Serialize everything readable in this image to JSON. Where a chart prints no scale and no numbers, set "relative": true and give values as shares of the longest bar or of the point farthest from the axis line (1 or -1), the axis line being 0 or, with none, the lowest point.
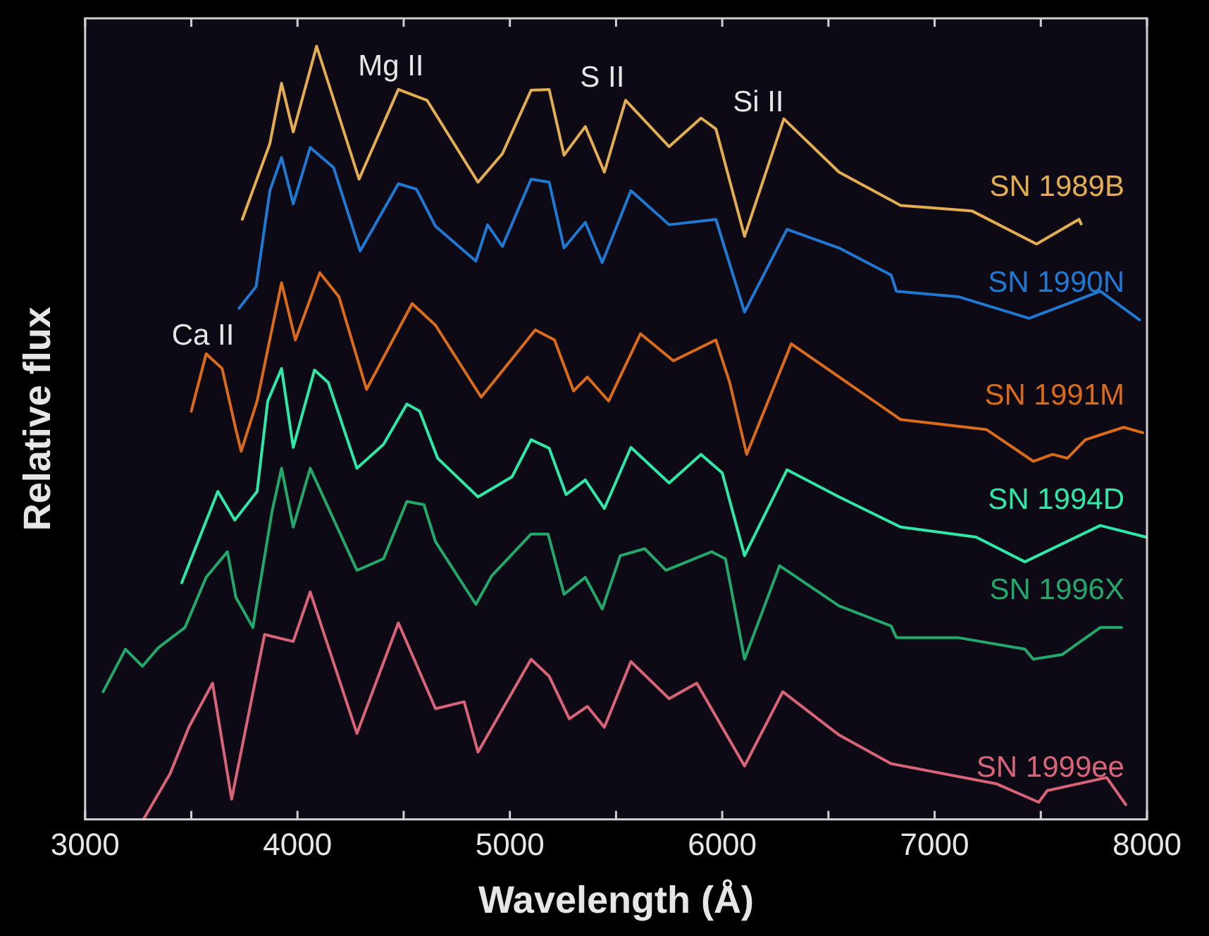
{
  "chart_data": {
    "type": "line",
    "relative": true,
    "xlabel": "Wavelength (Å)",
    "ylabel": "Relative flux",
    "xlim": [
      3000,
      8000
    ],
    "xticks": [
      3000,
      {
        "value": 3500,
        "label": null
      },
      4000,
      {
        "value": 4500,
        "label": null
      },
      5000,
      {
        "value": 5500,
        "label": null
      },
      6000,
      {
        "value": 6500,
        "label": null
      },
      7000,
      {
        "value": 7500,
        "label": null
      },
      8000
    ],
    "grid": false,
    "legend": false,
    "marker": "none",
    "line_style": "solid",
    "annotations": [
      "Ca II",
      "Mg II",
      "S II",
      "Si II"
    ],
    "series": [
      {
        "name": "SN 1989B",
        "color": "#e3ad52",
        "x": [
          3740,
          3870,
          3925,
          3980,
          4090,
          4290,
          4475,
          4610,
          4850,
          4965,
          5100,
          5185,
          5255,
          5355,
          5445,
          5545,
          5750,
          5900,
          5970,
          6105,
          6290,
          6550,
          6840,
          7175,
          7480,
          7680,
          7690
        ],
        "values": [
          0.776,
          0.874,
          0.952,
          0.889,
          1,
          0.828,
          0.944,
          0.93,
          0.824,
          0.861,
          0.943,
          0.944,
          0.859,
          0.896,
          0.837,
          0.93,
          0.87,
          0.907,
          0.893,
          0.754,
          0.906,
          0.837,
          0.794,
          0.787,
          0.744,
          0.776,
          0.77
        ]
      },
      {
        "name": "SN 1990N",
        "color": "#1f78d1",
        "x": [
          3725,
          3805,
          3870,
          3925,
          3980,
          4060,
          4170,
          4295,
          4475,
          4560,
          4650,
          4840,
          4895,
          4965,
          5100,
          5185,
          5255,
          5355,
          5435,
          5570,
          5750,
          5970,
          6105,
          6305,
          6550,
          6795,
          6820,
          7110,
          7445,
          7780,
          7965
        ],
        "values": [
          0.661,
          0.689,
          0.813,
          0.856,
          0.796,
          0.869,
          0.843,
          0.735,
          0.822,
          0.815,
          0.767,
          0.722,
          0.769,
          0.741,
          0.828,
          0.824,
          0.739,
          0.772,
          0.72,
          0.813,
          0.769,
          0.776,
          0.656,
          0.763,
          0.739,
          0.704,
          0.683,
          0.676,
          0.648,
          0.683,
          0.646
        ]
      },
      {
        "name": "SN 1991M",
        "color": "#d96b1a",
        "x": [
          3500,
          3570,
          3645,
          3710,
          3735,
          3810,
          3925,
          3990,
          4105,
          4195,
          4325,
          4540,
          4650,
          4865,
          5120,
          5210,
          5300,
          5365,
          5465,
          5615,
          5770,
          5970,
          6035,
          6115,
          6325,
          6840,
          7245,
          7465,
          7555,
          7625,
          7710,
          7890,
          7980
        ],
        "values": [
          0.528,
          0.602,
          0.583,
          0.504,
          0.476,
          0.541,
          0.694,
          0.62,
          0.707,
          0.676,
          0.556,
          0.667,
          0.639,
          0.546,
          0.633,
          0.62,
          0.554,
          0.572,
          0.541,
          0.628,
          0.593,
          0.62,
          0.565,
          0.472,
          0.615,
          0.517,
          0.504,
          0.463,
          0.472,
          0.467,
          0.491,
          0.507,
          0.5
        ]
      },
      {
        "name": "SN 1994D",
        "color": "#2ee8a8",
        "x": [
          3455,
          3625,
          3705,
          3810,
          3860,
          3925,
          3980,
          4080,
          4145,
          4280,
          4405,
          4515,
          4575,
          4660,
          4850,
          5010,
          5100,
          5185,
          5265,
          5355,
          5445,
          5570,
          5750,
          5900,
          6000,
          6105,
          6305,
          6550,
          6840,
          7195,
          7425,
          7780,
          7995
        ],
        "values": [
          0.306,
          0.424,
          0.387,
          0.424,
          0.541,
          0.583,
          0.481,
          0.581,
          0.565,
          0.454,
          0.485,
          0.537,
          0.528,
          0.467,
          0.417,
          0.443,
          0.491,
          0.48,
          0.42,
          0.439,
          0.402,
          0.481,
          0.435,
          0.472,
          0.448,
          0.341,
          0.452,
          0.417,
          0.378,
          0.365,
          0.333,
          0.38,
          0.365
        ]
      },
      {
        "name": "SN 1996X",
        "color": "#22a86a",
        "x": [
          3085,
          3190,
          3270,
          3345,
          3470,
          3570,
          3670,
          3710,
          3790,
          3880,
          3925,
          3980,
          4060,
          4280,
          4405,
          4515,
          4595,
          4650,
          4840,
          4915,
          5100,
          5180,
          5255,
          5355,
          5435,
          5520,
          5635,
          5735,
          5950,
          6015,
          6105,
          6270,
          6550,
          6795,
          6820,
          7110,
          7425,
          7465,
          7600,
          7780,
          7880
        ],
        "values": [
          0.165,
          0.22,
          0.198,
          0.222,
          0.248,
          0.313,
          0.346,
          0.287,
          0.248,
          0.398,
          0.454,
          0.378,
          0.454,
          0.322,
          0.337,
          0.411,
          0.407,
          0.359,
          0.278,
          0.315,
          0.369,
          0.369,
          0.291,
          0.313,
          0.272,
          0.341,
          0.35,
          0.322,
          0.346,
          0.337,
          0.207,
          0.328,
          0.276,
          0.25,
          0.235,
          0.235,
          0.22,
          0.207,
          0.213,
          0.248,
          0.248
        ]
      },
      {
        "name": "SN 1999ee",
        "color": "#d9647a",
        "x": [
          3275,
          3400,
          3490,
          3600,
          3690,
          3845,
          3980,
          4060,
          4280,
          4475,
          4650,
          4785,
          4850,
          5100,
          5185,
          5280,
          5365,
          5445,
          5570,
          5750,
          5880,
          6105,
          6285,
          6550,
          6795,
          7290,
          7490,
          7530,
          7810,
          7900
        ],
        "values": [
          0,
          0.059,
          0.12,
          0.176,
          0.026,
          0.239,
          0.23,
          0.294,
          0.111,
          0.254,
          0.143,
          0.152,
          0.087,
          0.207,
          0.185,
          0.13,
          0.146,
          0.119,
          0.204,
          0.156,
          0.176,
          0.069,
          0.165,
          0.109,
          0.072,
          0.046,
          0.022,
          0.037,
          0.054,
          0.019
        ]
      }
    ]
  }
}
